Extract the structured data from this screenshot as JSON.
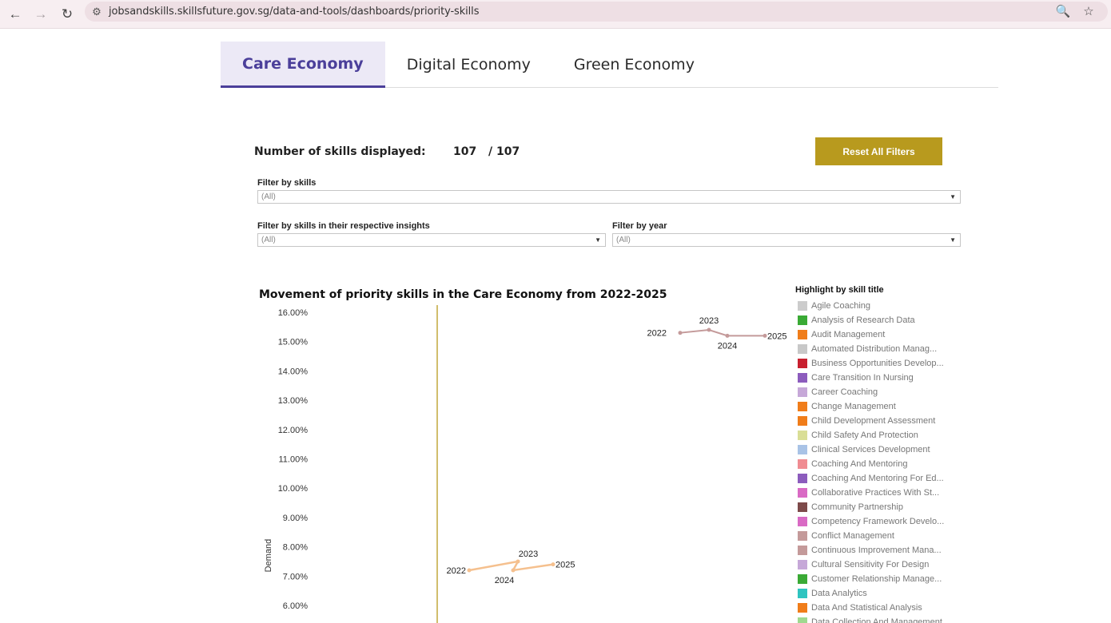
{
  "browser": {
    "url": "jobsandskills.skillsfuture.gov.sg/data-and-tools/dashboards/priority-skills",
    "back_icon": "←",
    "forward_icon": "→",
    "reload_icon": "↻",
    "site_info_icon": "⚙",
    "zoom_icon": "🔍",
    "bookmark_icon": "☆"
  },
  "tabs": [
    {
      "label": "Care Economy",
      "active": true
    },
    {
      "label": "Digital Economy",
      "active": false
    },
    {
      "label": "Green Economy",
      "active": false
    }
  ],
  "summary": {
    "label": "Number of skills displayed:",
    "displayed": "107",
    "total": "/ 107",
    "reset_label": "Reset All Filters",
    "reset_color": "#b89a1e"
  },
  "filters": {
    "skills": {
      "label": "Filter by skills",
      "value": "(All)"
    },
    "insights": {
      "label": "Filter by skills in their respective insights",
      "value": "(All)"
    },
    "year": {
      "label": "Filter by year",
      "value": "(All)"
    }
  },
  "chart": {
    "title": "Movement of priority skills in the Care Economy from 2022-2025",
    "ylabel": "Demand",
    "ref_line_color": "#b89a1e"
  },
  "chart_data": {
    "type": "line",
    "title": "Movement of priority skills in the Care Economy from 2022-2025",
    "ylabel": "Demand",
    "ylim": [
      5.6,
      16.4
    ],
    "yticks": [
      "16.00%",
      "15.00%",
      "14.00%",
      "13.00%",
      "12.00%",
      "11.00%",
      "10.00%",
      "9.00%",
      "8.00%",
      "7.00%",
      "6.00%"
    ],
    "series": [
      {
        "color": "#c49a9a",
        "x": [
          "2022",
          "2023",
          "2024",
          "2025"
        ],
        "values": [
          15.3,
          15.4,
          15.2,
          15.2
        ]
      },
      {
        "color": "#f5c08e",
        "x": [
          "2022",
          "2023",
          "2024",
          "2025"
        ],
        "values": [
          7.2,
          7.5,
          7.2,
          7.4
        ]
      }
    ]
  },
  "legend": {
    "title": "Highlight by skill title",
    "items": [
      {
        "label": "Agile Coaching",
        "color": "#cccccc"
      },
      {
        "label": "Analysis of Research Data",
        "color": "#3aaa35"
      },
      {
        "label": "Audit Management",
        "color": "#f07d1a"
      },
      {
        "label": "Automated Distribution Manag...",
        "color": "#c8c8c8"
      },
      {
        "label": "Business Opportunities Develop...",
        "color": "#c8202f"
      },
      {
        "label": "Care Transition In Nursing",
        "color": "#8c5cbd"
      },
      {
        "label": "Career Coaching",
        "color": "#c6a8d8"
      },
      {
        "label": "Change Management",
        "color": "#f07d1a"
      },
      {
        "label": "Child Development Assessment",
        "color": "#f07d1a"
      },
      {
        "label": "Child Safety And Protection",
        "color": "#d9de96"
      },
      {
        "label": "Clinical Services Development",
        "color": "#a9c3e6"
      },
      {
        "label": "Coaching And Mentoring",
        "color": "#f08c92"
      },
      {
        "label": "Coaching And Mentoring For Ed...",
        "color": "#8c5cbd"
      },
      {
        "label": "Collaborative Practices With St...",
        "color": "#d96ac4"
      },
      {
        "label": "Community Partnership",
        "color": "#7d4a4a"
      },
      {
        "label": "Competency Framework Develo...",
        "color": "#d96ac4"
      },
      {
        "label": "Conflict Management",
        "color": "#c49a9a"
      },
      {
        "label": "Continuous Improvement Mana...",
        "color": "#c49a9a"
      },
      {
        "label": "Cultural Sensitivity For Design",
        "color": "#c6a8d8"
      },
      {
        "label": "Customer Relationship Manage...",
        "color": "#3aaa35"
      },
      {
        "label": "Data Analytics",
        "color": "#2fc4c0"
      },
      {
        "label": "Data And Statistical Analysis",
        "color": "#f07d1a"
      },
      {
        "label": "Data Collection And Management",
        "color": "#9fd98f"
      }
    ]
  }
}
